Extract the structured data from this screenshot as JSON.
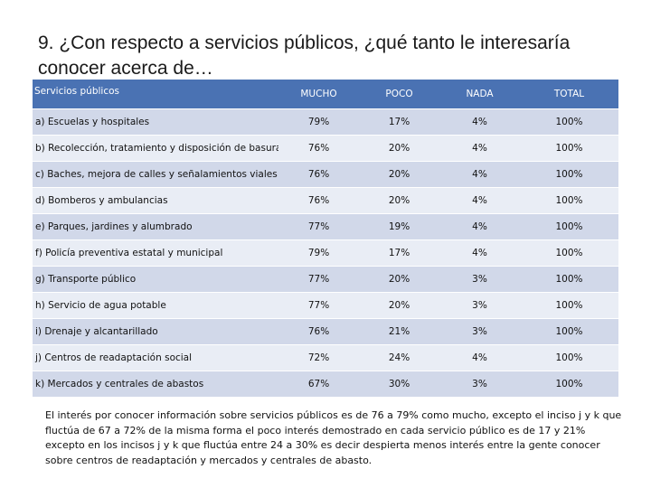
{
  "title": "9. ¿Con respecto a servicios públicos, ¿qué tanto le interesaría conocer acerca de…",
  "table": {
    "headers": [
      "Servicios públicos",
      "MUCHO",
      "POCO",
      "NADA",
      "TOTAL"
    ],
    "rows": [
      [
        "a) Escuelas y hospitales",
        "79%",
        "17%",
        "4%",
        "100%"
      ],
      [
        "b) Recolección, tratamiento y disposición de basura",
        "76%",
        "20%",
        "4%",
        "100%"
      ],
      [
        "c) Baches, mejora de calles y señalamientos viales",
        "76%",
        "20%",
        "4%",
        "100%"
      ],
      [
        "d) Bomberos y ambulancias",
        "76%",
        "20%",
        "4%",
        "100%"
      ],
      [
        "e) Parques, jardines y alumbrado",
        "77%",
        "19%",
        "4%",
        "100%"
      ],
      [
        "f) Policía preventiva estatal y municipal",
        "79%",
        "17%",
        "4%",
        "100%"
      ],
      [
        "g) Transporte público",
        "77%",
        "20%",
        "3%",
        "100%"
      ],
      [
        "h) Servicio de agua potable",
        "77%",
        "20%",
        "3%",
        "100%"
      ],
      [
        "i) Drenaje y alcantarillado",
        "76%",
        "21%",
        "3%",
        "100%"
      ],
      [
        "j) Centros de readaptación social",
        "72%",
        "24%",
        "4%",
        "100%"
      ],
      [
        "k) Mercados y centrales de abastos",
        "67%",
        "30%",
        "3%",
        "100%"
      ]
    ]
  },
  "note": "El interés por conocer información sobre servicios públicos es de 76 a 79% como mucho, excepto el inciso j y k que fluctúa de 67 a 72% de la misma forma el poco interés demostrado en cada servicio público es de 17 y 21% excepto en los incisos j y k que fluctúa entre 24 a 30% es decir despierta menos interés entre la gente conocer sobre centros de readaptación y mercados y centrales de abasto."
}
